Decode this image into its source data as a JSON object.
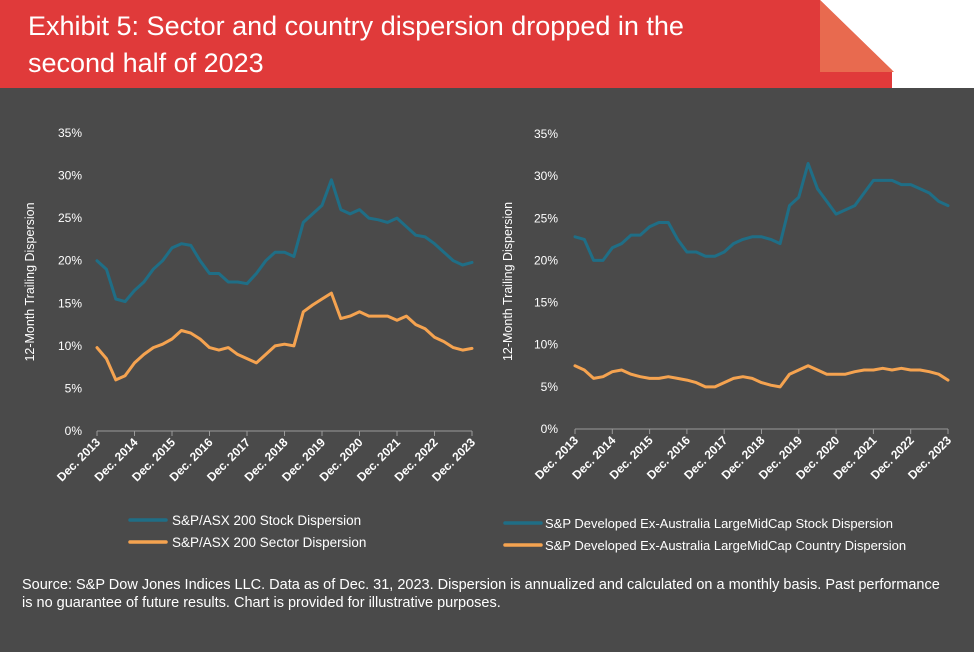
{
  "header": {
    "title_line1": "Exhibit 5: Sector and country dispersion dropped in the",
    "title_line2": "second half of 2023"
  },
  "source_text": "Source: S&P Dow Jones Indices LLC.  Data as of Dec. 31, 2023.  Dispersion is annualized and calculated on a monthly basis.  Past performance is no guarantee of future results.  Chart is provided for illustrative purposes.",
  "colors": {
    "background": "#4a4a4a",
    "banner": "#e03a3a",
    "fold": "#e86a4f",
    "stock_series": "#1f6e86",
    "secondary_series": "#f5a350",
    "text": "#ffffff"
  },
  "chart_data": [
    {
      "type": "line",
      "title": "",
      "ylabel": "12-Month Trailing Dispersion",
      "xlabel": "",
      "ylim": [
        0,
        35
      ],
      "yticks": [
        "0%",
        "5%",
        "10%",
        "15%",
        "20%",
        "25%",
        "30%",
        "35%"
      ],
      "xticks": [
        "Dec. 2013",
        "Dec. 2014",
        "Dec. 2015",
        "Dec. 2016",
        "Dec. 2017",
        "Dec. 2018",
        "Dec. 2019",
        "Dec. 2020",
        "Dec. 2021",
        "Dec. 2022",
        "Dec. 2023"
      ],
      "xlim": [
        "2013-12",
        "2023-12"
      ],
      "grid": false,
      "legend": "bottom",
      "series": [
        {
          "name": "S&P/ASX 200 Stock Dispersion",
          "color": "#1f6e86",
          "x": [
            "2013-12",
            "2014-03",
            "2014-06",
            "2014-09",
            "2014-12",
            "2015-03",
            "2015-06",
            "2015-09",
            "2015-12",
            "2016-03",
            "2016-06",
            "2016-09",
            "2016-12",
            "2017-03",
            "2017-06",
            "2017-09",
            "2017-12",
            "2018-03",
            "2018-06",
            "2018-09",
            "2018-12",
            "2019-03",
            "2019-06",
            "2019-09",
            "2019-12",
            "2020-03",
            "2020-06",
            "2020-09",
            "2020-12",
            "2021-03",
            "2021-06",
            "2021-09",
            "2021-12",
            "2022-03",
            "2022-06",
            "2022-09",
            "2022-12",
            "2023-03",
            "2023-06",
            "2023-09",
            "2023-12"
          ],
          "values": [
            20,
            19,
            15.5,
            15.2,
            16.5,
            17.5,
            19,
            20,
            21.5,
            22,
            21.8,
            20,
            18.5,
            18.5,
            17.5,
            17.5,
            17.3,
            18.5,
            20,
            21,
            21,
            20.5,
            24.5,
            25.5,
            26.5,
            29.5,
            26,
            25.5,
            26,
            25,
            24.8,
            24.5,
            25,
            24,
            23,
            22.8,
            22,
            21,
            20,
            19.5,
            19.8
          ]
        },
        {
          "name": "S&P/ASX 200 Sector Dispersion",
          "color": "#f5a350",
          "x": [
            "2013-12",
            "2014-03",
            "2014-06",
            "2014-09",
            "2014-12",
            "2015-03",
            "2015-06",
            "2015-09",
            "2015-12",
            "2016-03",
            "2016-06",
            "2016-09",
            "2016-12",
            "2017-03",
            "2017-06",
            "2017-09",
            "2017-12",
            "2018-03",
            "2018-06",
            "2018-09",
            "2018-12",
            "2019-03",
            "2019-06",
            "2019-09",
            "2019-12",
            "2020-03",
            "2020-06",
            "2020-09",
            "2020-12",
            "2021-03",
            "2021-06",
            "2021-09",
            "2021-12",
            "2022-03",
            "2022-06",
            "2022-09",
            "2022-12",
            "2023-03",
            "2023-06",
            "2023-09",
            "2023-12"
          ],
          "values": [
            9.8,
            8.5,
            6,
            6.5,
            8,
            9,
            9.8,
            10.2,
            10.8,
            11.8,
            11.5,
            10.8,
            9.8,
            9.5,
            9.8,
            9,
            8.5,
            8,
            9,
            10,
            10.2,
            10,
            14,
            14.8,
            15.5,
            16.2,
            13.2,
            13.5,
            14,
            13.5,
            13.5,
            13.5,
            13,
            13.5,
            12.5,
            12,
            11,
            10.5,
            9.8,
            9.5,
            9.7
          ]
        }
      ]
    },
    {
      "type": "line",
      "title": "",
      "ylabel": "12-Month Trailing Dispersion",
      "xlabel": "",
      "ylim": [
        0,
        35
      ],
      "yticks": [
        "0%",
        "5%",
        "10%",
        "15%",
        "20%",
        "25%",
        "30%",
        "35%"
      ],
      "xticks": [
        "Dec. 2013",
        "Dec. 2014",
        "Dec. 2015",
        "Dec. 2016",
        "Dec. 2017",
        "Dec. 2018",
        "Dec. 2019",
        "Dec. 2020",
        "Dec. 2021",
        "Dec. 2022",
        "Dec. 2023"
      ],
      "xlim": [
        "2013-12",
        "2023-12"
      ],
      "grid": false,
      "legend": "bottom",
      "series": [
        {
          "name": "S&P Developed Ex-Australia LargeMidCap Stock Dispersion",
          "color": "#1f6e86",
          "x": [
            "2013-12",
            "2014-03",
            "2014-06",
            "2014-09",
            "2014-12",
            "2015-03",
            "2015-06",
            "2015-09",
            "2015-12",
            "2016-03",
            "2016-06",
            "2016-09",
            "2016-12",
            "2017-03",
            "2017-06",
            "2017-09",
            "2017-12",
            "2018-03",
            "2018-06",
            "2018-09",
            "2018-12",
            "2019-03",
            "2019-06",
            "2019-09",
            "2019-12",
            "2020-03",
            "2020-06",
            "2020-09",
            "2020-12",
            "2021-03",
            "2021-06",
            "2021-09",
            "2021-12",
            "2022-03",
            "2022-06",
            "2022-09",
            "2022-12",
            "2023-03",
            "2023-06",
            "2023-09",
            "2023-12"
          ],
          "values": [
            22.8,
            22.5,
            20,
            20,
            21.5,
            22,
            23,
            23,
            24,
            24.5,
            24.5,
            22.5,
            21,
            21,
            20.5,
            20.5,
            21,
            22,
            22.5,
            22.8,
            22.8,
            22.5,
            22,
            26.5,
            27.5,
            31.5,
            28.5,
            27,
            25.5,
            26,
            26.5,
            28,
            29.5,
            29.5,
            29.5,
            29,
            29,
            28.5,
            28,
            27,
            26.5
          ]
        },
        {
          "name": "S&P Developed Ex-Australia LargeMidCap Country Dispersion",
          "color": "#f5a350",
          "x": [
            "2013-12",
            "2014-03",
            "2014-06",
            "2014-09",
            "2014-12",
            "2015-03",
            "2015-06",
            "2015-09",
            "2015-12",
            "2016-03",
            "2016-06",
            "2016-09",
            "2016-12",
            "2017-03",
            "2017-06",
            "2017-09",
            "2017-12",
            "2018-03",
            "2018-06",
            "2018-09",
            "2018-12",
            "2019-03",
            "2019-06",
            "2019-09",
            "2019-12",
            "2020-03",
            "2020-06",
            "2020-09",
            "2020-12",
            "2021-03",
            "2021-06",
            "2021-09",
            "2021-12",
            "2022-03",
            "2022-06",
            "2022-09",
            "2022-12",
            "2023-03",
            "2023-06",
            "2023-09",
            "2023-12"
          ],
          "values": [
            7.5,
            7,
            6,
            6.2,
            6.8,
            7,
            6.5,
            6.2,
            6,
            6,
            6.2,
            6,
            5.8,
            5.5,
            5,
            5,
            5.5,
            6,
            6.2,
            6,
            5.5,
            5.2,
            5,
            6.5,
            7,
            7.5,
            7,
            6.5,
            6.5,
            6.5,
            6.8,
            7,
            7,
            7.2,
            7,
            7.2,
            7,
            7,
            6.8,
            6.5,
            5.8
          ]
        }
      ]
    }
  ]
}
